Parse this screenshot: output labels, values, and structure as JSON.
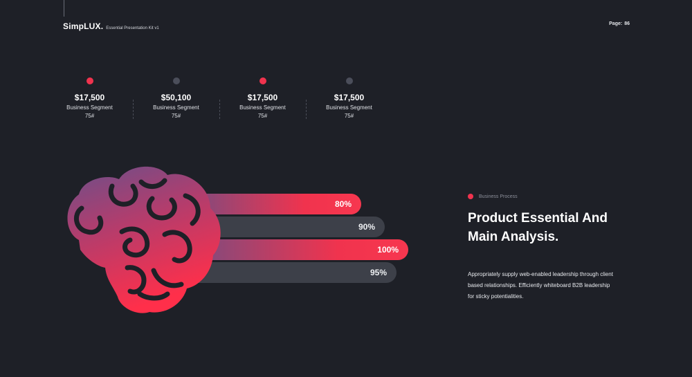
{
  "header": {
    "brand": "SimpLUX.",
    "subtitle": "Essential Presentation Kit v1",
    "page_label": "Page:",
    "page_number": "86"
  },
  "stats": [
    {
      "value": "$17,500",
      "label": "Business Segment",
      "sub": "75#",
      "dot": "red"
    },
    {
      "value": "$50,100",
      "label": "Business Segment",
      "sub": "75#",
      "dot": "gray"
    },
    {
      "value": "$17,500",
      "label": "Business Segment",
      "sub": "75#",
      "dot": "red"
    },
    {
      "value": "$17,500",
      "label": "Business Segment",
      "sub": "75#",
      "dot": "gray"
    }
  ],
  "bars": [
    {
      "label": "80%",
      "value": 80,
      "style": "red"
    },
    {
      "label": "90%",
      "value": 90,
      "style": "gray"
    },
    {
      "label": "100%",
      "value": 100,
      "style": "red"
    },
    {
      "label": "95%",
      "value": 95,
      "style": "gray"
    }
  ],
  "right": {
    "tag": "Business Process",
    "headline_1": "Product Essential And",
    "headline_2": "Main Analysis.",
    "para_1": "Appropriately supply web-enabled leadership through client",
    "para_2": "based relationships. Efficiently whiteboard B2B leadership",
    "para_3": "for sticky potentialities."
  },
  "colors": {
    "background": "#1e2027",
    "accent": "#f0334e",
    "muted": "#3d4049",
    "purple": "#6c4f86"
  },
  "icons": {
    "illustration": "brain-icon"
  }
}
